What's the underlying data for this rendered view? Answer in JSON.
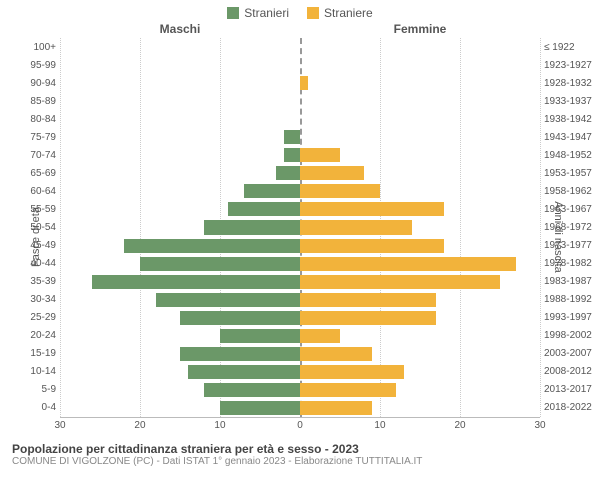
{
  "legend": {
    "male": {
      "label": "Stranieri",
      "color": "#6b9868"
    },
    "female": {
      "label": "Straniere",
      "color": "#f2b33b"
    }
  },
  "column_titles": {
    "left": "Maschi",
    "right": "Femmine"
  },
  "axis_titles": {
    "left": "Fasce di età",
    "right": "Anni di nascita"
  },
  "chart": {
    "type": "population-pyramid",
    "x_max": 30,
    "x_ticks_left": [
      30,
      20,
      10,
      0
    ],
    "x_ticks_right": [
      0,
      10,
      20,
      30
    ],
    "grid_color": "#cccccc",
    "center_axis_color": "#999999",
    "background_color": "#ffffff",
    "bar_color_left": "#6b9868",
    "bar_color_right": "#f2b33b",
    "label_fontsize": 10,
    "rows": [
      {
        "age": "100+",
        "birth": "≤ 1922",
        "m": 0,
        "f": 0
      },
      {
        "age": "95-99",
        "birth": "1923-1927",
        "m": 0,
        "f": 0
      },
      {
        "age": "90-94",
        "birth": "1928-1932",
        "m": 0,
        "f": 1
      },
      {
        "age": "85-89",
        "birth": "1933-1937",
        "m": 0,
        "f": 0
      },
      {
        "age": "80-84",
        "birth": "1938-1942",
        "m": 0,
        "f": 0
      },
      {
        "age": "75-79",
        "birth": "1943-1947",
        "m": 2,
        "f": 0
      },
      {
        "age": "70-74",
        "birth": "1948-1952",
        "m": 2,
        "f": 5
      },
      {
        "age": "65-69",
        "birth": "1953-1957",
        "m": 3,
        "f": 8
      },
      {
        "age": "60-64",
        "birth": "1958-1962",
        "m": 7,
        "f": 10
      },
      {
        "age": "55-59",
        "birth": "1963-1967",
        "m": 9,
        "f": 18
      },
      {
        "age": "50-54",
        "birth": "1968-1972",
        "m": 12,
        "f": 14
      },
      {
        "age": "45-49",
        "birth": "1973-1977",
        "m": 22,
        "f": 18
      },
      {
        "age": "40-44",
        "birth": "1978-1982",
        "m": 20,
        "f": 27
      },
      {
        "age": "35-39",
        "birth": "1983-1987",
        "m": 26,
        "f": 25
      },
      {
        "age": "30-34",
        "birth": "1988-1992",
        "m": 18,
        "f": 17
      },
      {
        "age": "25-29",
        "birth": "1993-1997",
        "m": 15,
        "f": 17
      },
      {
        "age": "20-24",
        "birth": "1998-2002",
        "m": 10,
        "f": 5
      },
      {
        "age": "15-19",
        "birth": "2003-2007",
        "m": 15,
        "f": 9
      },
      {
        "age": "10-14",
        "birth": "2008-2012",
        "m": 14,
        "f": 13
      },
      {
        "age": "5-9",
        "birth": "2013-2017",
        "m": 12,
        "f": 12
      },
      {
        "age": "0-4",
        "birth": "2018-2022",
        "m": 10,
        "f": 9
      }
    ]
  },
  "footer": {
    "title": "Popolazione per cittadinanza straniera per età e sesso - 2023",
    "subtitle": "COMUNE DI VIGOLZONE (PC) - Dati ISTAT 1° gennaio 2023 - Elaborazione TUTTITALIA.IT"
  }
}
